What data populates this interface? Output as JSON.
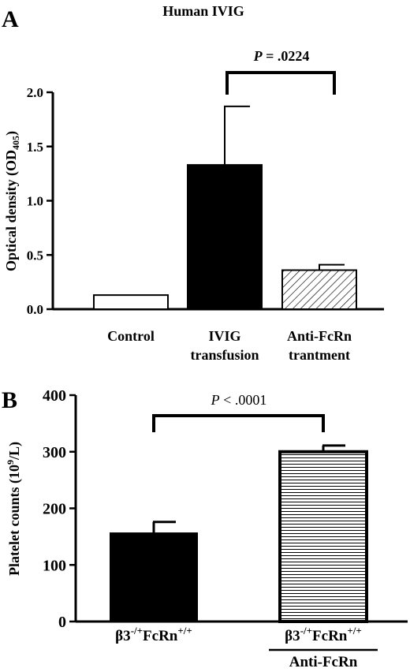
{
  "chart_data": [
    {
      "panel": "A",
      "type": "bar",
      "title": "Human IVIG",
      "ylabel_main": "Optical density (OD",
      "ylabel_sub": "405",
      "ylabel_end": ")",
      "ylim": [
        0,
        2.0
      ],
      "yticks": [
        "0.0",
        "0.5",
        "1.0",
        "1.5",
        "2.0"
      ],
      "categories": [
        [
          "Control"
        ],
        [
          "IVIG",
          "transfusion"
        ],
        [
          "Anti-FcRn",
          "trantment"
        ]
      ],
      "values": [
        0.13,
        1.33,
        0.36
      ],
      "errors": [
        0,
        0.54,
        0.05
      ],
      "fills": [
        "white",
        "black",
        "diagonal-hatch"
      ],
      "significance": {
        "p_label": "P",
        "p_text": " = .0224",
        "between": [
          1,
          2
        ]
      }
    },
    {
      "panel": "B",
      "type": "bar",
      "ylabel_main": "Platelet counts (10",
      "ylabel_sup": "9",
      "ylabel_end": "/L)",
      "ylim": [
        0,
        400
      ],
      "yticks": [
        "0",
        "100",
        "200",
        "300",
        "400"
      ],
      "categories": [
        {
          "main": "β3",
          "sup1": "-/+",
          "mid": "FcRn",
          "sup2": "+/+",
          "under": ""
        },
        {
          "main": "β3",
          "sup1": "-/+",
          "mid": "FcRn",
          "sup2": "+/+",
          "under": "Anti-FcRn"
        }
      ],
      "values": [
        156,
        300
      ],
      "errors": [
        20,
        11
      ],
      "fills": [
        "black",
        "horizontal-lines"
      ],
      "significance": {
        "p_label": "P",
        "p_text": " < .0001",
        "between": [
          0,
          1
        ]
      }
    }
  ],
  "colors": {
    "ink": "#000000",
    "paper": "#ffffff"
  }
}
